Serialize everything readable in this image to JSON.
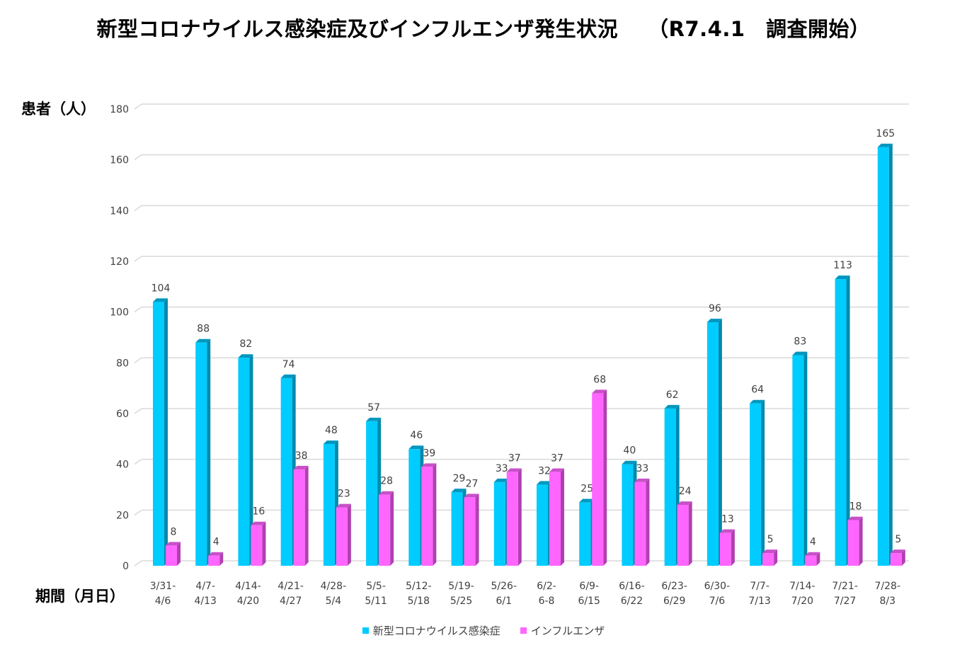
{
  "chart_data": {
    "type": "bar",
    "title": "新型コロナウイルス感染症及びインフルエンザ発生状況",
    "subtitle": "（R7.4.1　調査開始）",
    "ylabel": "患者（人）",
    "xlabel": "期間（月日）",
    "ylim": [
      0,
      180
    ],
    "yticks": [
      0,
      20,
      40,
      60,
      80,
      100,
      120,
      140,
      160,
      180
    ],
    "grid": true,
    "legend_position": "bottom",
    "categories": [
      [
        "3/31-",
        "4/6"
      ],
      [
        "4/7-",
        "4/13"
      ],
      [
        "4/14-",
        "4/20"
      ],
      [
        "4/21-",
        "4/27"
      ],
      [
        "4/28-",
        "5/4"
      ],
      [
        "5/5-",
        "5/11"
      ],
      [
        "5/12-",
        "5/18"
      ],
      [
        "5/19-",
        "5/25"
      ],
      [
        "5/26-",
        "6/1"
      ],
      [
        "6/2-",
        "6-8"
      ],
      [
        "6/9-",
        "6/15"
      ],
      [
        "6/16-",
        "6/22"
      ],
      [
        "6/23-",
        "6/29"
      ],
      [
        "6/30-",
        "7/6"
      ],
      [
        "7/7-",
        "7/13"
      ],
      [
        "7/14-",
        "7/20"
      ],
      [
        "7/21-",
        "7/27"
      ],
      [
        "7/28-",
        "8/3"
      ]
    ],
    "series": [
      {
        "name": "新型コロナウイルス感染症",
        "color": "#00CCFF",
        "side_color": "#0089AB",
        "top_color": "#0097BF",
        "values": [
          104,
          88,
          82,
          74,
          48,
          57,
          46,
          29,
          33,
          32,
          25,
          40,
          62,
          96,
          64,
          83,
          113,
          165
        ]
      },
      {
        "name": "インフルエンザ",
        "color": "#FF66FF",
        "side_color": "#B040B0",
        "top_color": "#C850C8",
        "values": [
          8,
          4,
          16,
          38,
          23,
          28,
          39,
          27,
          37,
          37,
          68,
          33,
          24,
          13,
          5,
          4,
          18,
          5
        ]
      }
    ]
  }
}
